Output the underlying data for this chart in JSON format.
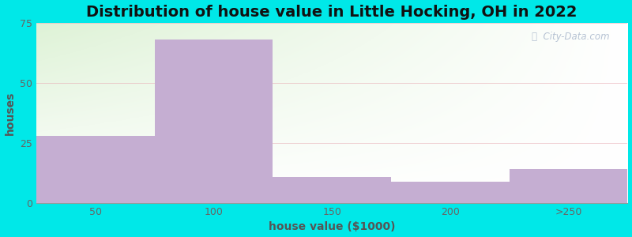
{
  "title": "Distribution of house value in Little Hocking, OH in 2022",
  "xlabel": "house value ($1000)",
  "ylabel": "houses",
  "bar_labels": [
    "50",
    "100",
    "150",
    "200",
    ">250"
  ],
  "bar_heights": [
    28,
    68,
    11,
    9,
    14
  ],
  "bar_color": "#c5aed2",
  "background_outer": "#00e8e8",
  "ylim": [
    0,
    75
  ],
  "yticks": [
    0,
    25,
    50,
    75
  ],
  "title_fontsize": 14,
  "axis_label_fontsize": 10,
  "tick_fontsize": 9,
  "watermark_text": "ⓘ  City-Data.com",
  "grid_color": "#e8b0b8",
  "grid_alpha": 0.6
}
